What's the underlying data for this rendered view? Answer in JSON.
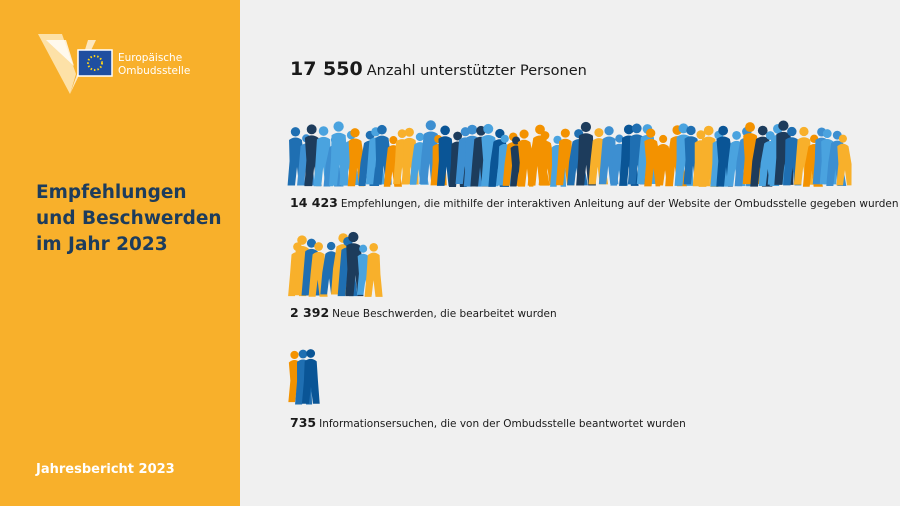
{
  "sidebar": {
    "logo_text": [
      "Europäische",
      "Ombudsstelle"
    ],
    "title": [
      "Empfehlungen",
      "und Beschwerden",
      "im Jahr 2023"
    ],
    "footer": "Jahresbericht 2023"
  },
  "total": {
    "value": "17 550",
    "label": "Anzahl unterstützter Personen"
  },
  "items": [
    {
      "value": "14 423",
      "label": "Empfehlungen, die mithilfe der interaktiven Anleitung auf der Website der Ombudsstelle gegeben wurden"
    },
    {
      "value": "2 392",
      "label": "Neue Beschwerden, die bearbeitet wurden"
    },
    {
      "value": "735",
      "label": "Informationsersuchen, die von der Ombudsstelle beantwortet wurden"
    }
  ]
}
